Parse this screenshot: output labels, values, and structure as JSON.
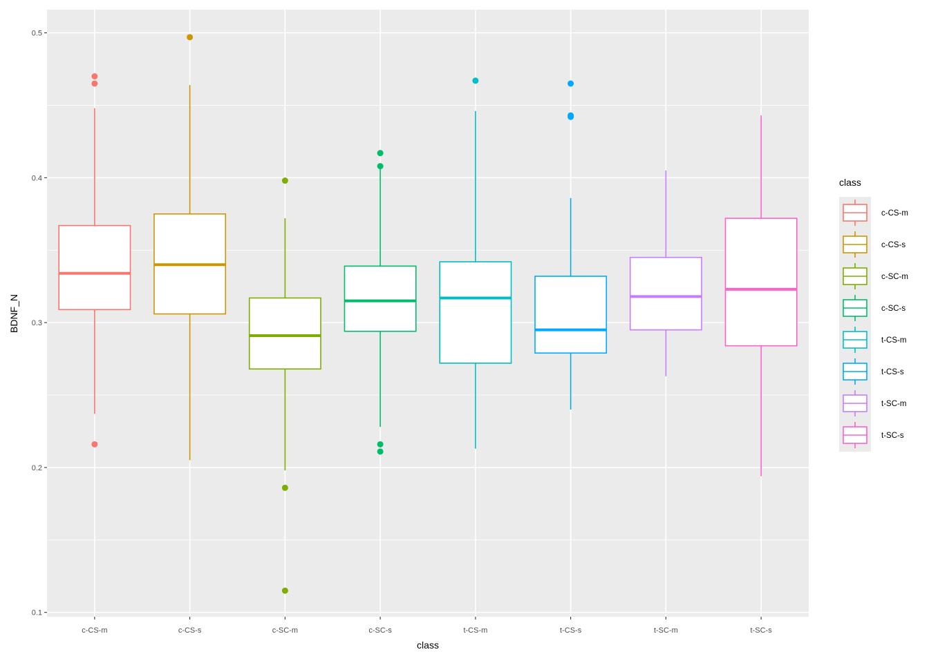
{
  "chart_data": {
    "type": "boxplot",
    "title": "",
    "xlabel": "class",
    "ylabel": "BDNF_N",
    "ylim": [
      0.097,
      0.516
    ],
    "y_ticks": [
      0.1,
      0.2,
      0.3,
      0.4,
      0.5
    ],
    "y_tick_labels": [
      "0.1",
      "0.2",
      "0.3",
      "0.4",
      "0.5"
    ],
    "grid": true,
    "legend_title": "class",
    "legend_position": "right",
    "categories": [
      "c-CS-m",
      "c-CS-s",
      "c-SC-m",
      "c-SC-s",
      "t-CS-m",
      "t-CS-s",
      "t-SC-m",
      "t-SC-s"
    ],
    "colors": [
      "#F8766D",
      "#CD9600",
      "#7CAE00",
      "#00BE67",
      "#00BFC4",
      "#00A9FF",
      "#C77CFF",
      "#FF61CC"
    ],
    "series": [
      {
        "name": "c-CS-m",
        "min": 0.237,
        "q1": 0.309,
        "median": 0.334,
        "q3": 0.367,
        "max": 0.448,
        "outliers": [
          0.47,
          0.465,
          0.216
        ]
      },
      {
        "name": "c-CS-s",
        "min": 0.205,
        "q1": 0.306,
        "median": 0.34,
        "q3": 0.375,
        "max": 0.464,
        "outliers": [
          0.497
        ]
      },
      {
        "name": "c-SC-m",
        "min": 0.198,
        "q1": 0.268,
        "median": 0.291,
        "q3": 0.317,
        "max": 0.372,
        "outliers": [
          0.398,
          0.186,
          0.115
        ]
      },
      {
        "name": "c-SC-s",
        "min": 0.228,
        "q1": 0.294,
        "median": 0.315,
        "q3": 0.339,
        "max": 0.406,
        "outliers": [
          0.417,
          0.408,
          0.216,
          0.211
        ]
      },
      {
        "name": "t-CS-m",
        "min": 0.213,
        "q1": 0.272,
        "median": 0.317,
        "q3": 0.342,
        "max": 0.446,
        "outliers": [
          0.467
        ]
      },
      {
        "name": "t-CS-s",
        "min": 0.24,
        "q1": 0.279,
        "median": 0.295,
        "q3": 0.332,
        "max": 0.386,
        "outliers": [
          0.465,
          0.443,
          0.442
        ]
      },
      {
        "name": "t-SC-m",
        "min": 0.263,
        "q1": 0.295,
        "median": 0.318,
        "q3": 0.345,
        "max": 0.405,
        "outliers": []
      },
      {
        "name": "t-SC-s",
        "min": 0.194,
        "q1": 0.284,
        "median": 0.323,
        "q3": 0.372,
        "max": 0.443,
        "outliers": []
      }
    ]
  }
}
